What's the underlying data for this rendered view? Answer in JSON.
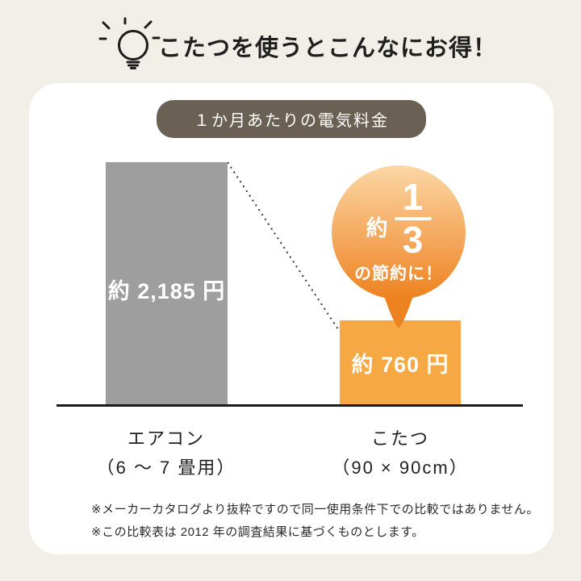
{
  "header": {
    "title": "こたつを使うとこんなにお得！"
  },
  "card": {
    "badge_label": "１か月あたりの電気料金"
  },
  "balloon": {
    "prefix": "約",
    "numerator": "1",
    "denominator": "3",
    "suffix": "の節約に！"
  },
  "footnotes": [
    "※メーカーカタログより抜粋ですので同一使用条件下での比較ではありません。",
    "※この比較表は 2012 年の調査結果に基づくものとします。"
  ],
  "colors": {
    "page_bg": "#f2efe9",
    "card_bg": "#ffffff",
    "badge_bg": "#6a6054",
    "badge_text": "#ffffff",
    "bar_text": "#ffffff",
    "baseline": "#1a1a1a",
    "dotted_line": "#333333",
    "text_dark": "#1f1f1f",
    "balloon_top": "#fcd7a6",
    "balloon_bottom": "#ed8220"
  },
  "chart_data": {
    "type": "bar",
    "title": "１か月あたりの電気料金",
    "unit": "円",
    "categories": [
      "エアコン (6 ～ 7 畳用)",
      "こたつ (90 × 90cm)"
    ],
    "values": [
      2185,
      760
    ],
    "ylim": [
      0,
      2185
    ],
    "grid": false,
    "legend": null,
    "annotation": "約1/3の節約に！",
    "bars": [
      {
        "category_line1": "エアコン",
        "category_line2": "（6 ～ 7 畳用）",
        "value": 2185,
        "value_label": "約 2,185 円",
        "color": "#9e9e9e"
      },
      {
        "category_line1": "こたつ",
        "category_line2": "（90 × 90cm）",
        "value": 760,
        "value_label": "約 760 円",
        "color": "#f5a843"
      }
    ]
  }
}
